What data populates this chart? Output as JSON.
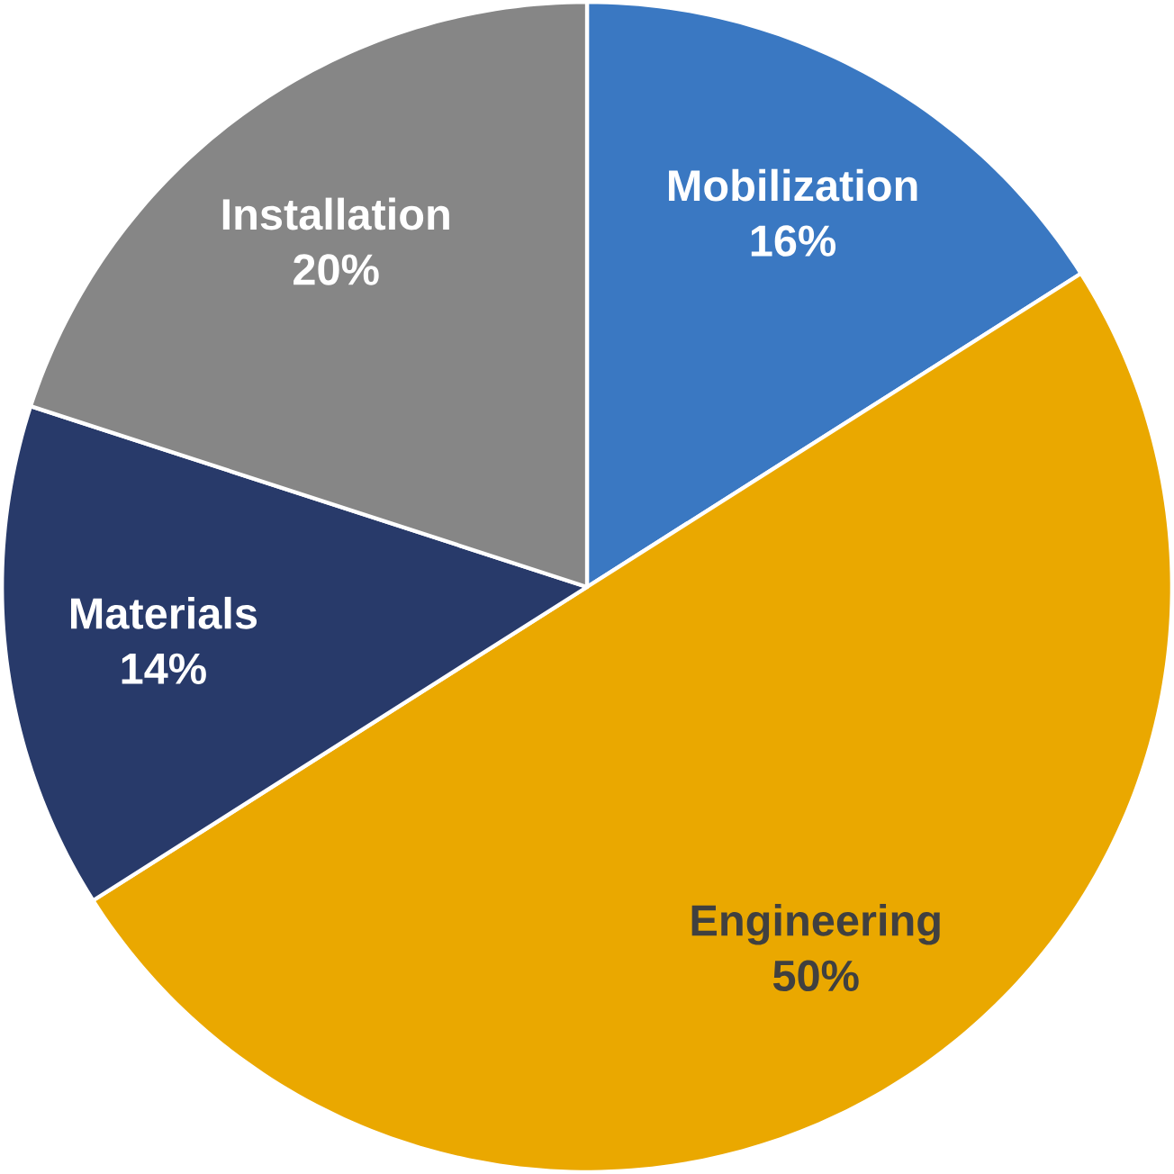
{
  "chart_data": {
    "type": "pie",
    "categories": [
      "Mobilization",
      "Engineering",
      "Materials",
      "Installation"
    ],
    "values": [
      16,
      50,
      14,
      20
    ],
    "value_labels": [
      "16%",
      "50%",
      "14%",
      "20%"
    ],
    "colors": [
      "#3a78c2",
      "#eaa800",
      "#283a6a",
      "#868686"
    ]
  }
}
